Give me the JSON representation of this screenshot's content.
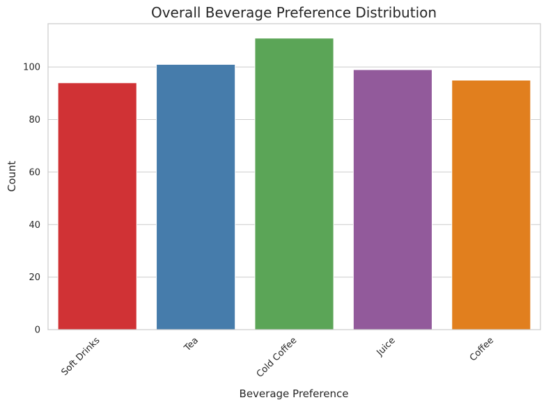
{
  "chart_data": {
    "type": "bar",
    "title": "Overall Beverage Preference Distribution",
    "xlabel": "Beverage Preference",
    "ylabel": "Count",
    "categories": [
      "Soft Drinks",
      "Tea",
      "Cold Coffee",
      "Juice",
      "Coffee"
    ],
    "values": [
      94,
      101,
      111,
      99,
      95
    ],
    "colors": [
      "#d03235",
      "#467cab",
      "#5ba557",
      "#925a9b",
      "#e17f1e"
    ],
    "ylim": [
      0,
      116.5
    ],
    "yticks": [
      0,
      20,
      40,
      60,
      80,
      100
    ],
    "grid": "horizontal",
    "legend": "none"
  }
}
